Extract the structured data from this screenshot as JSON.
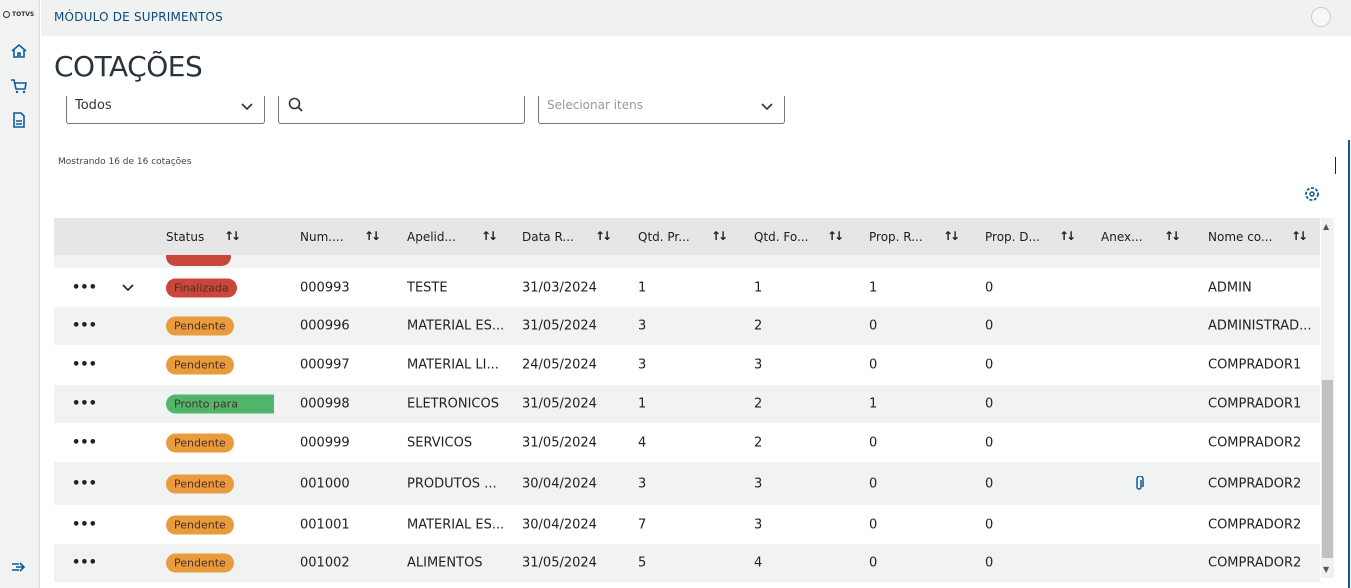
{
  "sidebar": {
    "logo": "TOTVS",
    "items": [
      {
        "icon": "home-icon"
      },
      {
        "icon": "cart-icon"
      },
      {
        "icon": "document-icon"
      }
    ],
    "collapse_icon": "expand-menu-icon"
  },
  "header": {
    "module": "MÓDULO DE SUPRIMENTOS",
    "user_icon": "user-icon"
  },
  "page": {
    "title": "COTAÇÕES"
  },
  "filters": {
    "status_value": "Todos",
    "search_value": "",
    "items_placeholder": "Selecionar itens"
  },
  "count_text": "Mostrando 16 de 16 cotações",
  "table": {
    "columns": [
      "Status",
      "Num....",
      "Apelid...",
      "Data R...",
      "Qtd. Pr...",
      "Qtd. Fo...",
      "Prop. R...",
      "Prop. D...",
      "Anex...",
      "Nome co..."
    ],
    "rows": [
      {
        "status": "Finalizada",
        "status_color": "#c9463d",
        "num": "000993",
        "apelido": "TESTE",
        "data": "31/03/2024",
        "qtd_pr": "1",
        "qtd_fo": "1",
        "prop_r": "1",
        "prop_d": "0",
        "anexo": false,
        "nome": "ADMIN",
        "expandable": true
      },
      {
        "status": "Pendente",
        "status_color": "#ea9b3e",
        "num": "000996",
        "apelido": "MATERIAL ES...",
        "data": "31/05/2024",
        "qtd_pr": "3",
        "qtd_fo": "2",
        "prop_r": "0",
        "prop_d": "0",
        "anexo": false,
        "nome": "ADMINISTRAD..."
      },
      {
        "status": "Pendente",
        "status_color": "#ea9b3e",
        "num": "000997",
        "apelido": "MATERIAL LI...",
        "data": "24/05/2024",
        "qtd_pr": "3",
        "qtd_fo": "3",
        "prop_r": "0",
        "prop_d": "0",
        "anexo": false,
        "nome": "COMPRADOR1"
      },
      {
        "status": "Pronto para analisar",
        "status_color": "#4fb66c",
        "num": "000998",
        "apelido": "ELETRONICOS",
        "data": "31/05/2024",
        "qtd_pr": "1",
        "qtd_fo": "2",
        "prop_r": "1",
        "prop_d": "0",
        "anexo": false,
        "nome": "COMPRADOR1"
      },
      {
        "status": "Pendente",
        "status_color": "#ea9b3e",
        "num": "000999",
        "apelido": "SERVICOS",
        "data": "31/05/2024",
        "qtd_pr": "4",
        "qtd_fo": "2",
        "prop_r": "0",
        "prop_d": "0",
        "anexo": false,
        "nome": "COMPRADOR2"
      },
      {
        "status": "Pendente",
        "status_color": "#ea9b3e",
        "num": "001000",
        "apelido": "PRODUTOS ...",
        "data": "30/04/2024",
        "qtd_pr": "3",
        "qtd_fo": "3",
        "prop_r": "0",
        "prop_d": "0",
        "anexo": true,
        "nome": "COMPRADOR2"
      },
      {
        "status": "Pendente",
        "status_color": "#ea9b3e",
        "num": "001001",
        "apelido": "MATERIAL ES...",
        "data": "30/04/2024",
        "qtd_pr": "7",
        "qtd_fo": "3",
        "prop_r": "0",
        "prop_d": "0",
        "anexo": false,
        "nome": "COMPRADOR2"
      },
      {
        "status": "Pendente",
        "status_color": "#ea9b3e",
        "num": "001002",
        "apelido": "ALIMENTOS",
        "data": "31/05/2024",
        "qtd_pr": "5",
        "qtd_fo": "4",
        "prop_r": "0",
        "prop_d": "0",
        "anexo": false,
        "nome": "COMPRADOR2"
      }
    ]
  },
  "colors": {
    "accent": "#0c5d9c",
    "finalizada": "#c9463d",
    "pendente": "#ea9b3e",
    "pronto": "#4fb66c"
  }
}
